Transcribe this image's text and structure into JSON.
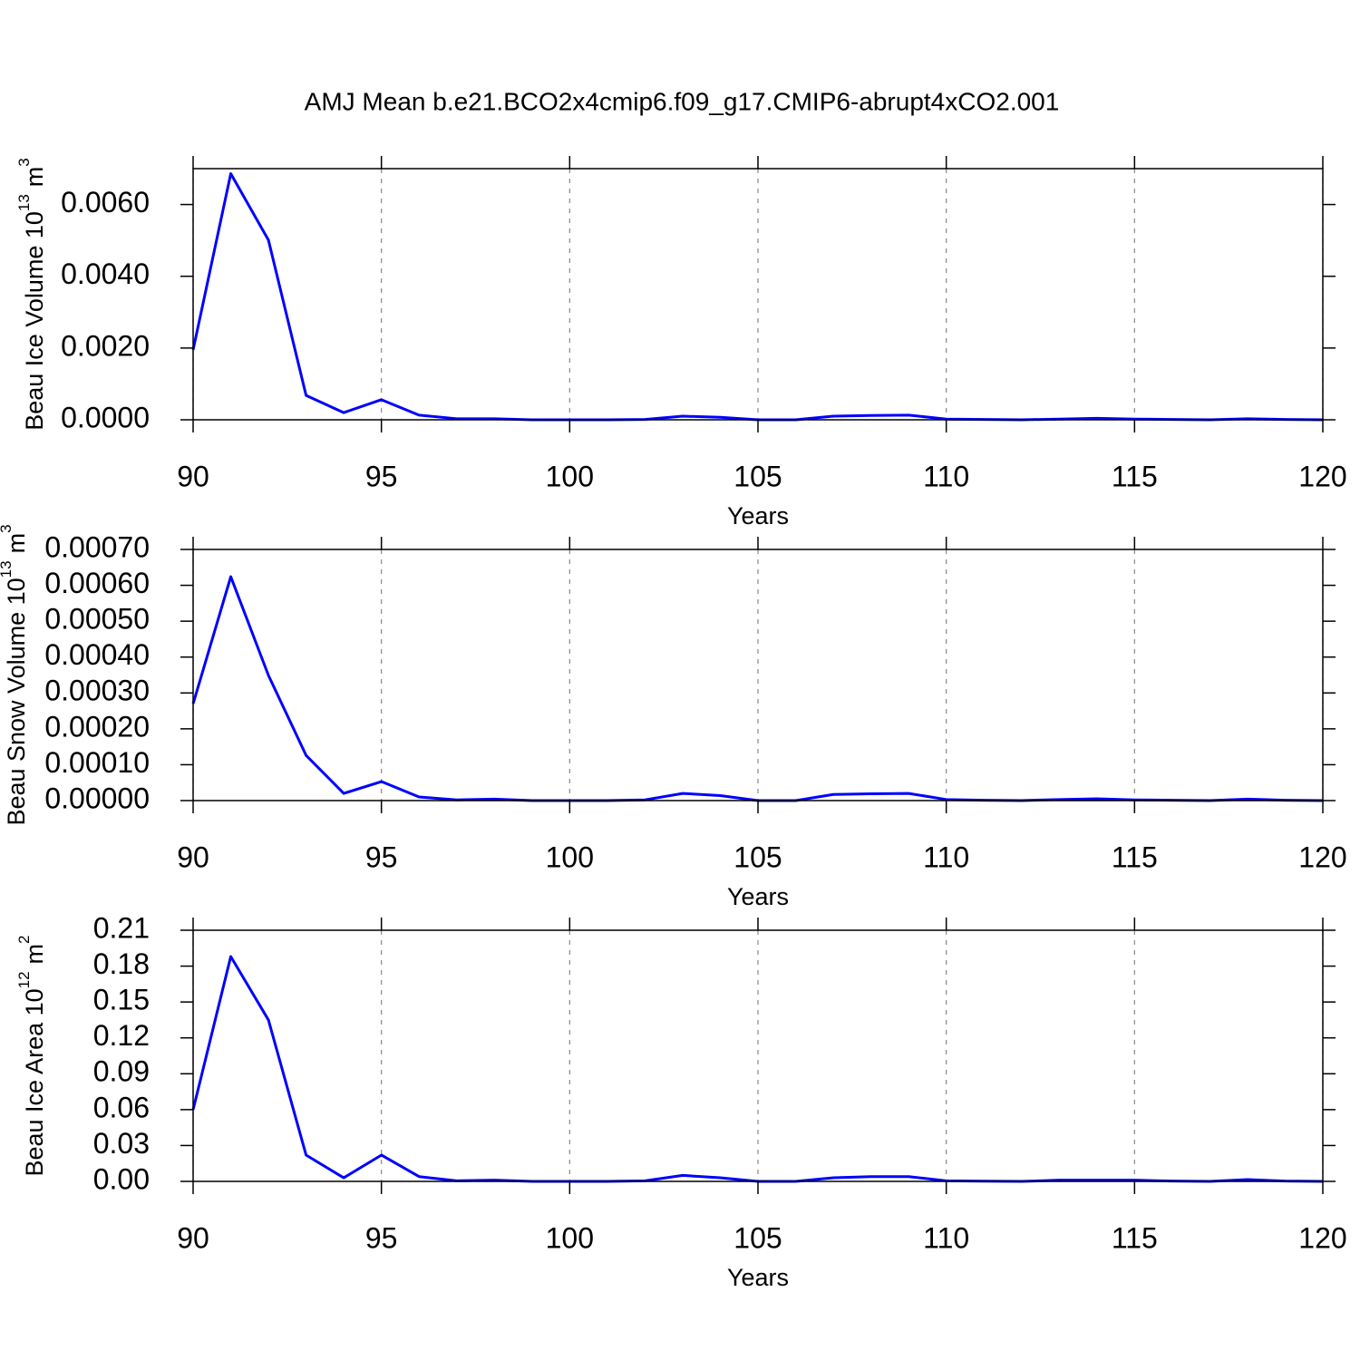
{
  "chart_data": [
    {
      "type": "line",
      "title": "AMJ Mean b.e21.BCO2x4cmip6.f09_g17.CMIP6-abrupt4xCO2.001",
      "xlabel": "Years",
      "ylabel": {
        "text": "Beau Ice Volume 10",
        "power": "13",
        "unit": "m",
        "unit_power": "3"
      },
      "x": [
        90,
        91,
        92,
        93,
        94,
        95,
        96,
        97,
        98,
        99,
        100,
        101,
        102,
        103,
        104,
        105,
        106,
        107,
        108,
        109,
        110,
        111,
        112,
        113,
        114,
        115,
        116,
        117,
        118,
        119,
        120
      ],
      "values": [
        0.00195,
        0.00686,
        0.00501,
        0.00068,
        0.0002,
        0.00056,
        0.00013,
        3e-05,
        3e-05,
        0,
        0,
        0,
        1e-05,
        0.0001,
        7e-05,
        0,
        0,
        0.0001,
        0.00012,
        0.00013,
        2e-05,
        1e-05,
        0,
        2e-05,
        4e-05,
        2e-05,
        1e-05,
        0,
        3e-05,
        1e-05,
        0
      ],
      "color": "#0000ff",
      "xlim": [
        90,
        120
      ],
      "xticks": [
        90,
        95,
        100,
        105,
        110,
        115,
        120
      ],
      "ylim": [
        0,
        0.007
      ],
      "yticks": [
        {
          "value": 0,
          "label": "0.0000"
        },
        {
          "value": 0.002,
          "label": "0.0020"
        },
        {
          "value": 0.004,
          "label": "0.0040"
        },
        {
          "value": 0.006,
          "label": "0.0060"
        }
      ],
      "grid": true
    },
    {
      "type": "line",
      "xlabel": "Years",
      "ylabel": {
        "text": "Beau Snow Volume 10",
        "power": "13",
        "unit": "m",
        "unit_power": "3"
      },
      "x": [
        90,
        91,
        92,
        93,
        94,
        95,
        96,
        97,
        98,
        99,
        100,
        101,
        102,
        103,
        104,
        105,
        106,
        107,
        108,
        109,
        110,
        111,
        112,
        113,
        114,
        115,
        116,
        117,
        118,
        119,
        120
      ],
      "values": [
        0.00027,
        0.000624,
        0.000349,
        0.000126,
        2e-05,
        5.3e-05,
        1e-05,
        2e-06,
        4e-06,
        0,
        0,
        0,
        2e-06,
        2e-05,
        1.4e-05,
        0,
        0,
        1.7e-05,
        1.9e-05,
        2e-05,
        3e-06,
        1e-06,
        0,
        3e-06,
        5e-06,
        2e-06,
        1e-06,
        0,
        4e-06,
        1e-06,
        0
      ],
      "color": "#0000ff",
      "xlim": [
        90,
        120
      ],
      "xticks": [
        90,
        95,
        100,
        105,
        110,
        115,
        120
      ],
      "ylim": [
        0,
        0.0007
      ],
      "yticks": [
        {
          "value": 0,
          "label": "0.00000"
        },
        {
          "value": 0.0001,
          "label": "0.00010"
        },
        {
          "value": 0.0002,
          "label": "0.00020"
        },
        {
          "value": 0.0003,
          "label": "0.00030"
        },
        {
          "value": 0.0004,
          "label": "0.00040"
        },
        {
          "value": 0.0005,
          "label": "0.00050"
        },
        {
          "value": 0.0006,
          "label": "0.00060"
        },
        {
          "value": 0.0007,
          "label": "0.00070"
        }
      ],
      "grid": true
    },
    {
      "type": "line",
      "xlabel": "Years",
      "ylabel": {
        "text": "Beau Ice Area 10",
        "power": "12",
        "unit": "m",
        "unit_power": "2"
      },
      "x": [
        90,
        91,
        92,
        93,
        94,
        95,
        96,
        97,
        98,
        99,
        100,
        101,
        102,
        103,
        104,
        105,
        106,
        107,
        108,
        109,
        110,
        111,
        112,
        113,
        114,
        115,
        116,
        117,
        118,
        119,
        120
      ],
      "values": [
        0.06,
        0.188,
        0.135,
        0.022,
        0.003,
        0.022,
        0.004,
        0.0005,
        0.001,
        0,
        0,
        0,
        0.0005,
        0.005,
        0.003,
        0,
        0,
        0.003,
        0.004,
        0.004,
        0.0005,
        0.0002,
        0,
        0.001,
        0.001,
        0.001,
        0.0003,
        0,
        0.0015,
        0.0003,
        0
      ],
      "color": "#0000ff",
      "xlim": [
        90,
        120
      ],
      "xticks": [
        90,
        95,
        100,
        105,
        110,
        115,
        120
      ],
      "ylim": [
        0,
        0.21
      ],
      "yticks": [
        {
          "value": 0,
          "label": "0.00"
        },
        {
          "value": 0.03,
          "label": "0.03"
        },
        {
          "value": 0.06,
          "label": "0.06"
        },
        {
          "value": 0.09,
          "label": "0.09"
        },
        {
          "value": 0.12,
          "label": "0.12"
        },
        {
          "value": 0.15,
          "label": "0.15"
        },
        {
          "value": 0.18,
          "label": "0.18"
        },
        {
          "value": 0.21,
          "label": "0.21"
        }
      ],
      "grid": true
    }
  ]
}
